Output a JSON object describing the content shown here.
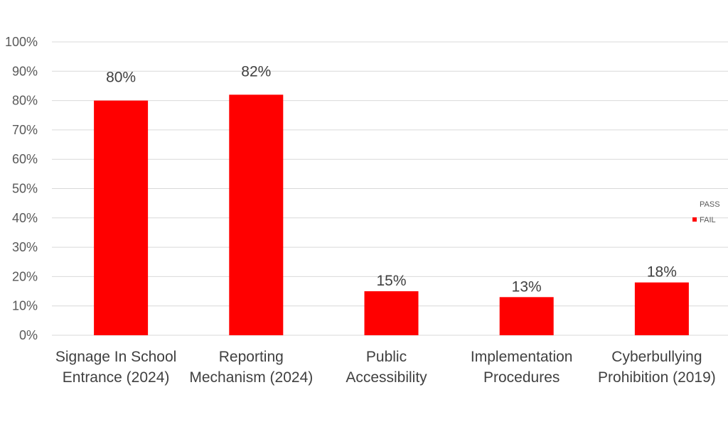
{
  "chart_data": {
    "type": "bar",
    "categories": [
      [
        "Signage In School",
        "Entrance (2024)"
      ],
      [
        "Reporting",
        "Mechanism (2024)"
      ],
      [
        "Public",
        "Accessibility"
      ],
      [
        "Implementation",
        "Procedures"
      ],
      [
        "Cyberbullying",
        "Prohibition (2019)"
      ]
    ],
    "series": [
      {
        "name": "PASS",
        "color": "#ffffff",
        "values": [
          0,
          0,
          0,
          0,
          0
        ],
        "labels": [
          "",
          "",
          "",
          "",
          ""
        ]
      },
      {
        "name": "FAIL",
        "color": "#ff0000",
        "values": [
          80,
          82,
          15,
          13,
          18
        ],
        "labels": [
          "80%",
          "82%",
          "15%",
          "13%",
          "18%"
        ]
      }
    ],
    "yticks": [
      "0%",
      "10%",
      "20%",
      "30%",
      "40%",
      "50%",
      "60%",
      "70%",
      "80%",
      "90%",
      "100%"
    ],
    "ylim": [
      0,
      100
    ],
    "title": "",
    "xlabel": "",
    "ylabel": "",
    "grid": true,
    "legend": "right"
  }
}
